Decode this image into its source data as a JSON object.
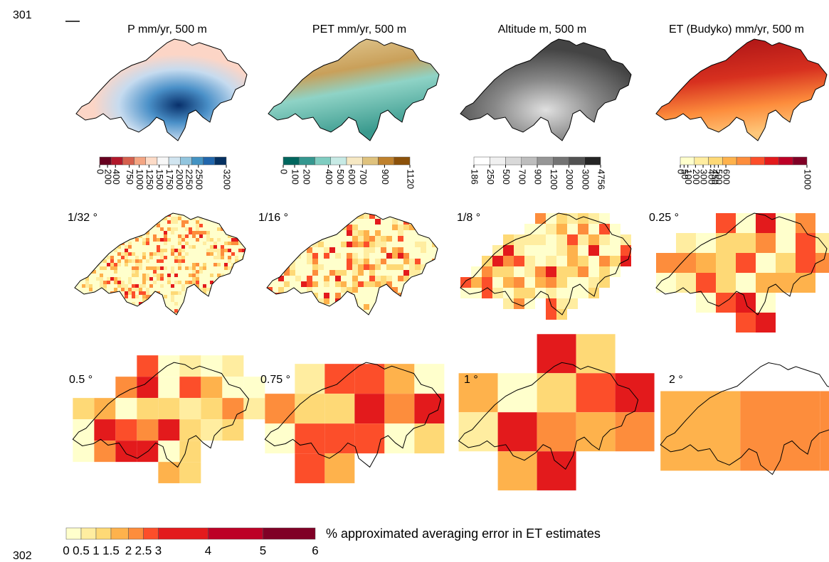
{
  "line_numbers": [
    "301",
    "302"
  ],
  "panels": [
    {
      "title": "P mm/yr, 500 m",
      "colorbar": {
        "colors": [
          "#67001f",
          "#b2182b",
          "#d6604d",
          "#f4a582",
          "#fddbc7",
          "#f7f7f7",
          "#d1e5f0",
          "#92c5de",
          "#4393c3",
          "#2166ac",
          "#053061"
        ],
        "ticks": [
          "0",
          "200",
          "400",
          "750",
          "1000",
          "1250",
          "1500",
          "1750",
          "2000",
          "2250",
          "2500",
          "3200"
        ]
      }
    },
    {
      "title": "PET mm/yr, 500 m",
      "colorbar": {
        "colors": [
          "#01665e",
          "#35978f",
          "#80cdc1",
          "#c7eae5",
          "#f6e8c3",
          "#dfc27d",
          "#bf812d",
          "#8c510a"
        ],
        "ticks": [
          "0",
          "100",
          "200",
          "400",
          "500",
          "600",
          "700",
          "900",
          "1120"
        ]
      }
    },
    {
      "title": "Altitude m, 500 m",
      "colorbar": {
        "colors": [
          "#ffffff",
          "#f0f0f0",
          "#d9d9d9",
          "#bdbdbd",
          "#969696",
          "#737373",
          "#525252",
          "#252525"
        ],
        "ticks": [
          "186",
          "250",
          "500",
          "700",
          "900",
          "1200",
          "2000",
          "3000",
          "4756"
        ]
      }
    },
    {
      "title": "ET (Budyko) mm/yr, 500 m",
      "colorbar": {
        "colors": [
          "#ffffcc",
          "#ffeda0",
          "#fed976",
          "#feb24c",
          "#fd8d3c",
          "#fc4e2a",
          "#e31a1c",
          "#bd0026",
          "#800026"
        ],
        "ticks": [
          "0",
          "50",
          "100",
          "200",
          "300",
          "400",
          "450",
          "500",
          "600",
          "1000"
        ]
      }
    }
  ],
  "resolutions": [
    {
      "label": "1/32 °"
    },
    {
      "label": "1/16 °"
    },
    {
      "label": "1/8 °"
    },
    {
      "label": "0.25 °"
    },
    {
      "label": "0.5 °"
    },
    {
      "label": "0.75 °"
    },
    {
      "label": "1 °"
    },
    {
      "label": "2 °"
    }
  ],
  "legend": {
    "title": "% approximated averaging error in ET estimates",
    "colors": [
      "#ffffcc",
      "#ffeda0",
      "#fed976",
      "#feb24c",
      "#fd8d3c",
      "#fc4e2a",
      "#e31a1c",
      "#bd0026",
      "#800026"
    ],
    "ticks": [
      "0",
      "0.5",
      "1",
      "1.5",
      "2",
      "2.5",
      "3",
      "4",
      "5",
      "6"
    ]
  }
}
